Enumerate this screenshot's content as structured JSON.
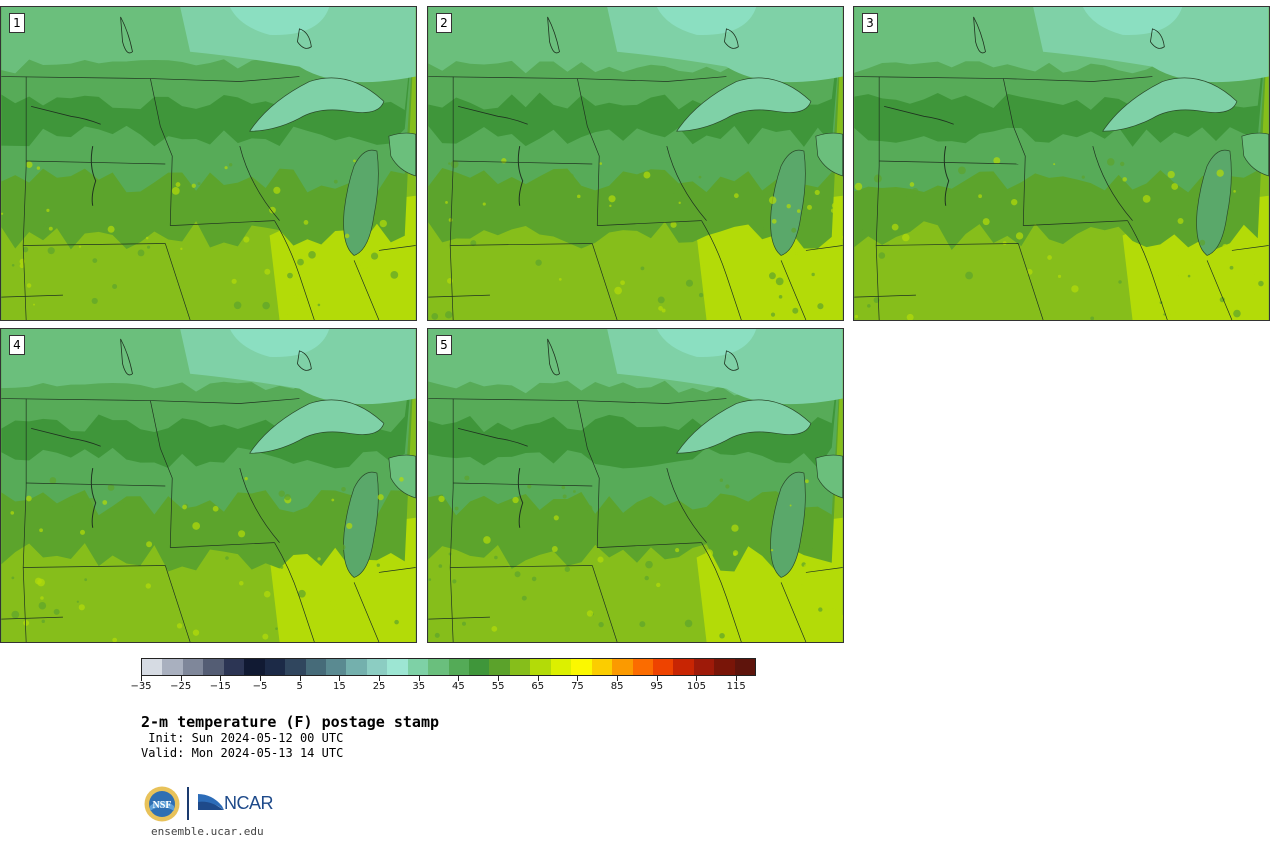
{
  "panels": [
    {
      "label": "1",
      "seed": 1
    },
    {
      "label": "2",
      "seed": 2
    },
    {
      "label": "3",
      "seed": 3
    },
    {
      "label": "4",
      "seed": 4
    },
    {
      "label": "5",
      "seed": 5
    }
  ],
  "colorbar": {
    "colors": [
      "#d6dbe3",
      "#a9b0bf",
      "#7f879a",
      "#545d74",
      "#2c3554",
      "#111a33",
      "#1c2a47",
      "#30465e",
      "#466b79",
      "#5a8a91",
      "#74b0ad",
      "#8ccdc2",
      "#9de6d3",
      "#7ed1a6",
      "#6abf7d",
      "#54ab57",
      "#3f963a",
      "#5ba22b",
      "#86be1b",
      "#b3db08",
      "#dcf000",
      "#fbf800",
      "#fbcd00",
      "#fb9a00",
      "#fb6c00",
      "#ee4300",
      "#c82503",
      "#9e1a09",
      "#791508",
      "#5e140c"
    ],
    "tick_values": [
      -35,
      -25,
      -15,
      -5,
      5,
      15,
      25,
      35,
      45,
      55,
      65,
      75,
      85,
      95,
      105,
      115
    ],
    "tick_labels": [
      "−35",
      "−25",
      "−15",
      "−5",
      "5",
      "15",
      "25",
      "35",
      "45",
      "55",
      "65",
      "75",
      "85",
      "95",
      "105",
      "115"
    ],
    "min": -35,
    "max": 120
  },
  "title": "2-m temperature (F) postage stamp",
  "init": " Init: Sun 2024-05-12 00 UTC",
  "valid": "Valid: Mon 2024-05-13 14 UTC",
  "logos": {
    "ncar_text": "NCAR",
    "nsf_text": "NSF"
  },
  "site": "ensemble.ucar.edu"
}
